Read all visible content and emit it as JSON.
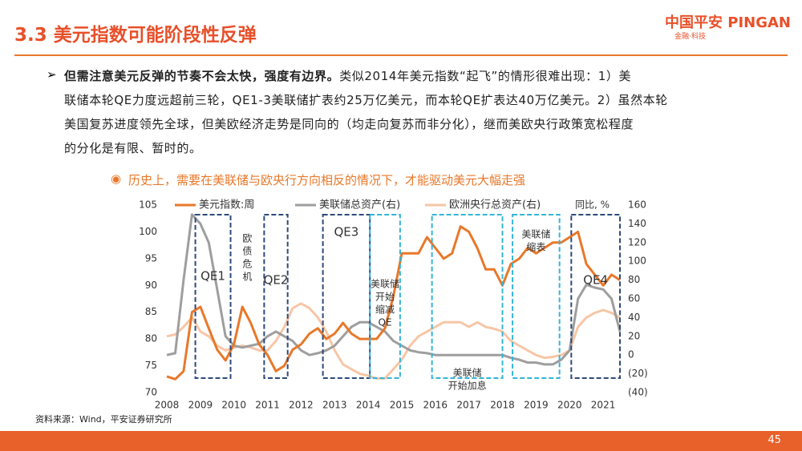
{
  "header": {
    "title": "3.3 美元指数可能阶段性反弹",
    "logo": "中国平安 PINGAN",
    "logo_sub": "金融·科技"
  },
  "bullet": {
    "lead": "但需注意美元反弹的节奏不会太快，强度有边界。",
    "lines": [
      "类似2014年美元指数“起飞”的情形很难出现：1）美",
      "联储本轮QE力度远超前三轮，QE1-3美联储扩表约25万亿美元，而本轮QE扩表达40万亿美元。2）虽然本轮",
      "美国复苏进度领先全球，但美欧经济走势是同向的（均走向复苏而非分化），继而美欧央行政策宽松程度",
      "的分化是有限、暂时的。"
    ]
  },
  "chart_title": "历史上，需要在美联储与欧央行方向相反的情况下，才能驱动美元大幅走强",
  "source": "资料来源：Wind，平安证券研究所",
  "page_number": "45",
  "chart_data": {
    "type": "line",
    "x": [
      2008,
      2008.25,
      2008.5,
      2008.75,
      2009,
      2009.25,
      2009.5,
      2009.75,
      2010,
      2010.25,
      2010.5,
      2010.75,
      2011,
      2011.25,
      2011.5,
      2011.75,
      2012,
      2012.25,
      2012.5,
      2012.75,
      2013,
      2013.25,
      2013.5,
      2013.75,
      2014,
      2014.25,
      2014.5,
      2014.75,
      2015,
      2015.25,
      2015.5,
      2015.75,
      2016,
      2016.25,
      2016.5,
      2016.75,
      2017,
      2017.25,
      2017.5,
      2017.75,
      2018,
      2018.25,
      2018.5,
      2018.75,
      2019,
      2019.25,
      2019.5,
      2019.75,
      2020,
      2020.25,
      2020.5,
      2020.75,
      2021,
      2021.25,
      2021.5
    ],
    "series": [
      {
        "name": "美元指数:周",
        "color": "#e8782a",
        "values": [
          73,
          72.5,
          74,
          85,
          86,
          82,
          78,
          76,
          79,
          86,
          83,
          79,
          77,
          74,
          75,
          78,
          79,
          81,
          82,
          80,
          81,
          83,
          81,
          80,
          80,
          80,
          82,
          88,
          96,
          96,
          96,
          99,
          97,
          95,
          96,
          101,
          100,
          97,
          93,
          93,
          90,
          94,
          95,
          97,
          96,
          97,
          98,
          98,
          99,
          100,
          94,
          92,
          90,
          92,
          91
        ]
      },
      {
        "name": "美联储总资产(右)",
        "color": "#9e9e9e",
        "axis": "y2",
        "values": [
          0,
          2,
          80,
          150,
          140,
          120,
          70,
          20,
          10,
          8,
          10,
          12,
          20,
          25,
          20,
          15,
          5,
          0,
          2,
          5,
          10,
          20,
          30,
          35,
          35,
          30,
          25,
          15,
          10,
          5,
          3,
          2,
          0,
          0,
          0,
          0,
          0,
          0,
          0,
          0,
          0,
          -3,
          -5,
          -8,
          -8,
          -10,
          -10,
          -5,
          5,
          60,
          75,
          72,
          70,
          60,
          25
        ]
      },
      {
        "name": "欧洲央行总资产(右)",
        "color": "#f7c6a6",
        "axis": "y2",
        "values": [
          20,
          22,
          30,
          40,
          25,
          20,
          10,
          5,
          8,
          10,
          8,
          5,
          5,
          15,
          30,
          50,
          55,
          50,
          40,
          25,
          5,
          -10,
          -15,
          -20,
          -22,
          -25,
          -25,
          -15,
          -5,
          10,
          20,
          25,
          30,
          35,
          35,
          35,
          30,
          35,
          30,
          28,
          25,
          15,
          10,
          5,
          0,
          -3,
          -2,
          0,
          5,
          30,
          40,
          45,
          48,
          45,
          40
        ]
      }
    ],
    "xlim": [
      2008,
      2021.5
    ],
    "xticks": [
      2008,
      2009,
      2010,
      2011,
      2012,
      2013,
      2014,
      2015,
      2016,
      2017,
      2018,
      2019,
      2020,
      2021
    ],
    "ylim": [
      70,
      105
    ],
    "yticks": [
      70,
      75,
      80,
      85,
      90,
      95,
      100,
      105
    ],
    "y2lim": [
      -40,
      160
    ],
    "y2ticks": [
      {
        "value": -40,
        "label": "(40)"
      },
      {
        "value": -20,
        "label": "(20)"
      },
      0,
      20,
      40,
      60,
      80,
      100,
      120,
      140,
      160
    ],
    "y2label": "同比, %",
    "grid": false,
    "annotations": [
      {
        "lines": [
          "QE1"
        ],
        "x": [
          2008.85,
          2009.9
        ],
        "color": "#2e4a7a"
      },
      {
        "lines": [
          "欧",
          "债",
          "危",
          "机"
        ],
        "x": [
          2010.4,
          2010.4
        ],
        "color": "#e0443a",
        "box": false
      },
      {
        "lines": [
          "QE2"
        ],
        "x": [
          2010.9,
          2011.6
        ],
        "color": "#2e4a7a"
      },
      {
        "lines": [
          "QE3"
        ],
        "x": [
          2012.65,
          2014.05
        ],
        "color": "#2e4a7a"
      },
      {
        "lines": [
          "美联储",
          "开始",
          "缩减",
          "QE"
        ],
        "x": [
          2014.05,
          2014.95
        ],
        "color": "#33b5d8"
      },
      {
        "lines": [
          "美联储",
          "开始加息"
        ],
        "x": [
          2015.9,
          2018.0
        ],
        "color": "#33b5d8"
      },
      {
        "lines": [
          "美联储",
          "缩表"
        ],
        "x": [
          2018.3,
          2019.7
        ],
        "color": "#33b5d8"
      },
      {
        "lines": [
          "QE4"
        ],
        "x": [
          2020.05,
          2021.5
        ],
        "color": "#2e4a7a"
      }
    ]
  }
}
